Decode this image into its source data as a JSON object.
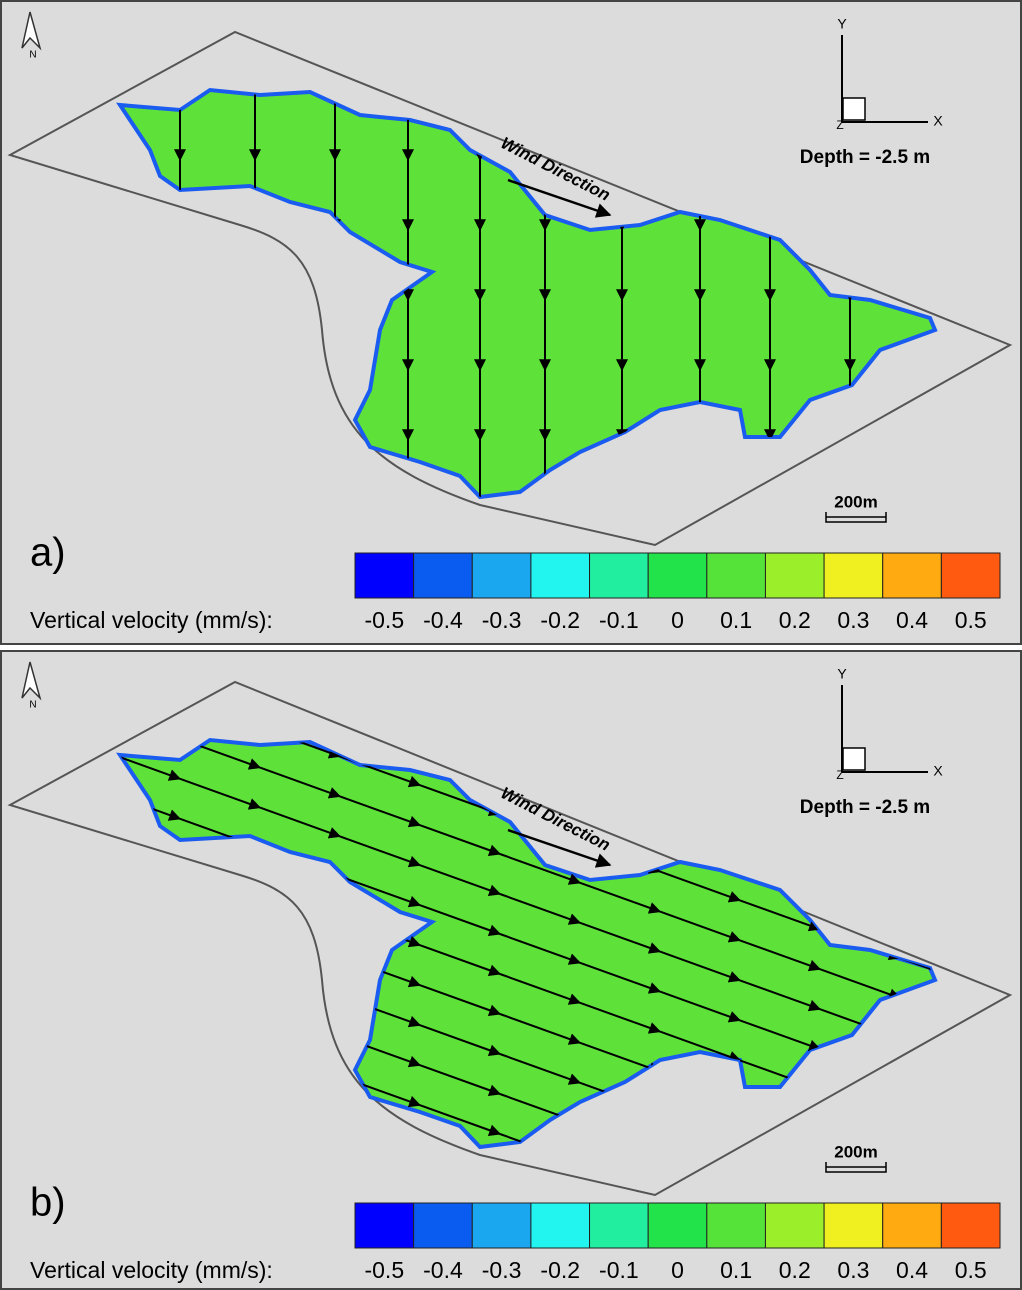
{
  "panels": [
    {
      "label": "a)",
      "north": "N",
      "axes": {
        "x": "X",
        "y": "Y",
        "z": "Z"
      },
      "depth": "Depth = -2.5 m",
      "wind": "Wind Direction",
      "scale_bar": "200m",
      "colorbar": {
        "label": "Vertical velocity (mm/s):",
        "ticks": [
          -0.5,
          -0.4,
          -0.3,
          -0.2,
          -0.1,
          0,
          0.1,
          0.2,
          0.3,
          0.4,
          0.5
        ],
        "colors": [
          "#0000ff",
          "#0a5cf0",
          "#1aa7f0",
          "#22f5f0",
          "#22eea0",
          "#22e34a",
          "#55e33a",
          "#9aee2a",
          "#f0f020",
          "#ffaa10",
          "#ff5a10",
          "#ff1020"
        ]
      }
    },
    {
      "label": "b)",
      "north": "N",
      "axes": {
        "x": "X",
        "y": "Y",
        "z": "Z"
      },
      "depth": "Depth = -2.5 m",
      "wind": "Wind Direction",
      "scale_bar": "200m",
      "colorbar": {
        "label": "Vertical velocity (mm/s):",
        "ticks": [
          -0.5,
          -0.4,
          -0.3,
          -0.2,
          -0.1,
          0,
          0.1,
          0.2,
          0.3,
          0.4,
          0.5
        ],
        "colors": [
          "#0000ff",
          "#0a5cf0",
          "#1aa7f0",
          "#22f5f0",
          "#22eea0",
          "#22e34a",
          "#55e33a",
          "#9aee2a",
          "#f0f020",
          "#ffaa10",
          "#ff5a10",
          "#ff1020"
        ]
      }
    }
  ]
}
